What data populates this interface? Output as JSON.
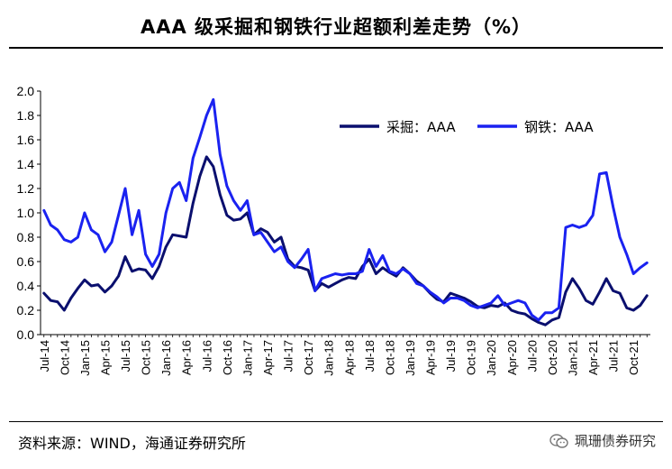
{
  "header": {
    "title": "AAA 级采掘和钢铁行业超额利差走势（%）"
  },
  "footer": {
    "source": "资料来源：WIND，海通证券研究所",
    "watermark": "珮珊债券研究"
  },
  "icons": {
    "watermark": "wechat-icon"
  },
  "chart_data": {
    "type": "line",
    "title": "AAA 级采掘和钢铁行业超额利差走势（%）",
    "xlabel": "",
    "ylabel": "",
    "ylim": [
      0.0,
      2.0
    ],
    "yticks": [
      "0.0",
      "0.2",
      "0.4",
      "0.6",
      "0.8",
      "1.0",
      "1.2",
      "1.4",
      "1.6",
      "1.8",
      "2.0"
    ],
    "x_start": "Jul-14",
    "x_end": "Dec-21",
    "x_ticks": [
      "Jul-14",
      "Oct-14",
      "Jan-15",
      "Apr-15",
      "Jul-15",
      "Oct-15",
      "Jan-16",
      "Apr-16",
      "Jul-16",
      "Oct-16",
      "Jan-17",
      "Apr-17",
      "Jul-17",
      "Oct-17",
      "Jan-18",
      "Apr-18",
      "Jul-18",
      "Oct-18",
      "Jan-19",
      "Apr-19",
      "Jul-19",
      "Oct-19",
      "Jan-20",
      "Apr-20",
      "Jul-20",
      "Oct-20",
      "Jan-21",
      "Apr-21",
      "Jul-21",
      "Oct-21"
    ],
    "grid": false,
    "legend_position": "top-right",
    "series": [
      {
        "name": "采掘：AAA",
        "color": "#0a0f6e",
        "points": [
          [
            "Jul-14",
            0.34
          ],
          [
            "Aug-14",
            0.28
          ],
          [
            "Sep-14",
            0.27
          ],
          [
            "Oct-14",
            0.2
          ],
          [
            "Nov-14",
            0.3
          ],
          [
            "Dec-14",
            0.38
          ],
          [
            "Jan-15",
            0.45
          ],
          [
            "Feb-15",
            0.4
          ],
          [
            "Mar-15",
            0.41
          ],
          [
            "Apr-15",
            0.35
          ],
          [
            "May-15",
            0.4
          ],
          [
            "Jun-15",
            0.48
          ],
          [
            "Jul-15",
            0.64
          ],
          [
            "Aug-15",
            0.52
          ],
          [
            "Sep-15",
            0.54
          ],
          [
            "Oct-15",
            0.53
          ],
          [
            "Nov-15",
            0.46
          ],
          [
            "Dec-15",
            0.56
          ],
          [
            "Jan-16",
            0.72
          ],
          [
            "Feb-16",
            0.82
          ],
          [
            "Mar-16",
            0.81
          ],
          [
            "Apr-16",
            0.8
          ],
          [
            "May-16",
            1.08
          ],
          [
            "Jun-16",
            1.3
          ],
          [
            "Jul-16",
            1.46
          ],
          [
            "Aug-16",
            1.38
          ],
          [
            "Sep-16",
            1.15
          ],
          [
            "Oct-16",
            0.98
          ],
          [
            "Nov-16",
            0.94
          ],
          [
            "Dec-16",
            0.95
          ],
          [
            "Jan-17",
            1.0
          ],
          [
            "Feb-17",
            0.82
          ],
          [
            "Mar-17",
            0.87
          ],
          [
            "Apr-17",
            0.84
          ],
          [
            "May-17",
            0.76
          ],
          [
            "Jun-17",
            0.8
          ],
          [
            "Jul-17",
            0.62
          ],
          [
            "Aug-17",
            0.56
          ],
          [
            "Sep-17",
            0.55
          ],
          [
            "Oct-17",
            0.53
          ],
          [
            "Nov-17",
            0.36
          ],
          [
            "Dec-17",
            0.42
          ],
          [
            "Jan-18",
            0.39
          ],
          [
            "Feb-18",
            0.42
          ],
          [
            "Mar-18",
            0.45
          ],
          [
            "Apr-18",
            0.47
          ],
          [
            "May-18",
            0.46
          ],
          [
            "Jun-18",
            0.56
          ],
          [
            "Jul-18",
            0.62
          ],
          [
            "Aug-18",
            0.5
          ],
          [
            "Sep-18",
            0.55
          ],
          [
            "Oct-18",
            0.51
          ],
          [
            "Nov-18",
            0.48
          ],
          [
            "Dec-18",
            0.55
          ],
          [
            "Jan-19",
            0.5
          ],
          [
            "Feb-19",
            0.44
          ],
          [
            "Mar-19",
            0.4
          ],
          [
            "Apr-19",
            0.34
          ],
          [
            "May-19",
            0.29
          ],
          [
            "Jun-19",
            0.27
          ],
          [
            "Jul-19",
            0.34
          ],
          [
            "Aug-19",
            0.32
          ],
          [
            "Sep-19",
            0.3
          ],
          [
            "Oct-19",
            0.27
          ],
          [
            "Nov-19",
            0.23
          ],
          [
            "Dec-19",
            0.22
          ],
          [
            "Jan-20",
            0.24
          ],
          [
            "Feb-20",
            0.23
          ],
          [
            "Mar-20",
            0.26
          ],
          [
            "Apr-20",
            0.2
          ],
          [
            "May-20",
            0.18
          ],
          [
            "Jun-20",
            0.17
          ],
          [
            "Jul-20",
            0.13
          ],
          [
            "Aug-20",
            0.1
          ],
          [
            "Sep-20",
            0.08
          ],
          [
            "Oct-20",
            0.12
          ],
          [
            "Nov-20",
            0.14
          ],
          [
            "Dec-20",
            0.35
          ],
          [
            "Jan-21",
            0.46
          ],
          [
            "Feb-21",
            0.38
          ],
          [
            "Mar-21",
            0.28
          ],
          [
            "Apr-21",
            0.25
          ],
          [
            "May-21",
            0.35
          ],
          [
            "Jun-21",
            0.46
          ],
          [
            "Jul-21",
            0.36
          ],
          [
            "Aug-21",
            0.34
          ],
          [
            "Sep-21",
            0.22
          ],
          [
            "Oct-21",
            0.2
          ],
          [
            "Nov-21",
            0.24
          ],
          [
            "Dec-21",
            0.32
          ]
        ]
      },
      {
        "name": "钢铁：AAA",
        "color": "#1a22f0",
        "points": [
          [
            "Jul-14",
            1.02
          ],
          [
            "Aug-14",
            0.9
          ],
          [
            "Sep-14",
            0.86
          ],
          [
            "Oct-14",
            0.78
          ],
          [
            "Nov-14",
            0.76
          ],
          [
            "Dec-14",
            0.8
          ],
          [
            "Jan-15",
            1.0
          ],
          [
            "Feb-15",
            0.86
          ],
          [
            "Mar-15",
            0.82
          ],
          [
            "Apr-15",
            0.68
          ],
          [
            "May-15",
            0.76
          ],
          [
            "Jun-15",
            0.98
          ],
          [
            "Jul-15",
            1.2
          ],
          [
            "Aug-15",
            0.82
          ],
          [
            "Sep-15",
            1.02
          ],
          [
            "Oct-15",
            0.66
          ],
          [
            "Nov-15",
            0.56
          ],
          [
            "Dec-15",
            0.66
          ],
          [
            "Jan-16",
            1.0
          ],
          [
            "Feb-16",
            1.2
          ],
          [
            "Mar-16",
            1.25
          ],
          [
            "Apr-16",
            1.1
          ],
          [
            "May-16",
            1.45
          ],
          [
            "Jun-16",
            1.62
          ],
          [
            "Jul-16",
            1.8
          ],
          [
            "Aug-16",
            1.93
          ],
          [
            "Sep-16",
            1.48
          ],
          [
            "Oct-16",
            1.22
          ],
          [
            "Nov-16",
            1.1
          ],
          [
            "Dec-16",
            1.02
          ],
          [
            "Jan-17",
            1.1
          ],
          [
            "Feb-17",
            0.82
          ],
          [
            "Mar-17",
            0.84
          ],
          [
            "Apr-17",
            0.76
          ],
          [
            "May-17",
            0.68
          ],
          [
            "Jun-17",
            0.72
          ],
          [
            "Jul-17",
            0.6
          ],
          [
            "Aug-17",
            0.55
          ],
          [
            "Sep-17",
            0.62
          ],
          [
            "Oct-17",
            0.7
          ],
          [
            "Nov-17",
            0.36
          ],
          [
            "Dec-17",
            0.46
          ],
          [
            "Jan-18",
            0.48
          ],
          [
            "Feb-18",
            0.5
          ],
          [
            "Mar-18",
            0.49
          ],
          [
            "Apr-18",
            0.5
          ],
          [
            "May-18",
            0.5
          ],
          [
            "Jun-18",
            0.52
          ],
          [
            "Jul-18",
            0.7
          ],
          [
            "Aug-18",
            0.56
          ],
          [
            "Sep-18",
            0.65
          ],
          [
            "Oct-18",
            0.52
          ],
          [
            "Nov-18",
            0.5
          ],
          [
            "Dec-18",
            0.54
          ],
          [
            "Jan-19",
            0.5
          ],
          [
            "Feb-19",
            0.42
          ],
          [
            "Mar-19",
            0.4
          ],
          [
            "Apr-19",
            0.35
          ],
          [
            "May-19",
            0.31
          ],
          [
            "Jun-19",
            0.26
          ],
          [
            "Jul-19",
            0.3
          ],
          [
            "Aug-19",
            0.3
          ],
          [
            "Sep-19",
            0.28
          ],
          [
            "Oct-19",
            0.24
          ],
          [
            "Nov-19",
            0.22
          ],
          [
            "Dec-19",
            0.24
          ],
          [
            "Jan-20",
            0.26
          ],
          [
            "Feb-20",
            0.32
          ],
          [
            "Mar-20",
            0.24
          ],
          [
            "Apr-20",
            0.26
          ],
          [
            "May-20",
            0.28
          ],
          [
            "Jun-20",
            0.26
          ],
          [
            "Jul-20",
            0.16
          ],
          [
            "Aug-20",
            0.12
          ],
          [
            "Sep-20",
            0.18
          ],
          [
            "Oct-20",
            0.18
          ],
          [
            "Nov-20",
            0.22
          ],
          [
            "Dec-20",
            0.88
          ],
          [
            "Jan-21",
            0.9
          ],
          [
            "Feb-21",
            0.88
          ],
          [
            "Mar-21",
            0.9
          ],
          [
            "Apr-21",
            0.98
          ],
          [
            "May-21",
            1.32
          ],
          [
            "Jun-21",
            1.33
          ],
          [
            "Jul-21",
            1.05
          ],
          [
            "Aug-21",
            0.8
          ],
          [
            "Sep-21",
            0.66
          ],
          [
            "Oct-21",
            0.5
          ],
          [
            "Nov-21",
            0.55
          ],
          [
            "Dec-21",
            0.59
          ]
        ]
      }
    ]
  }
}
